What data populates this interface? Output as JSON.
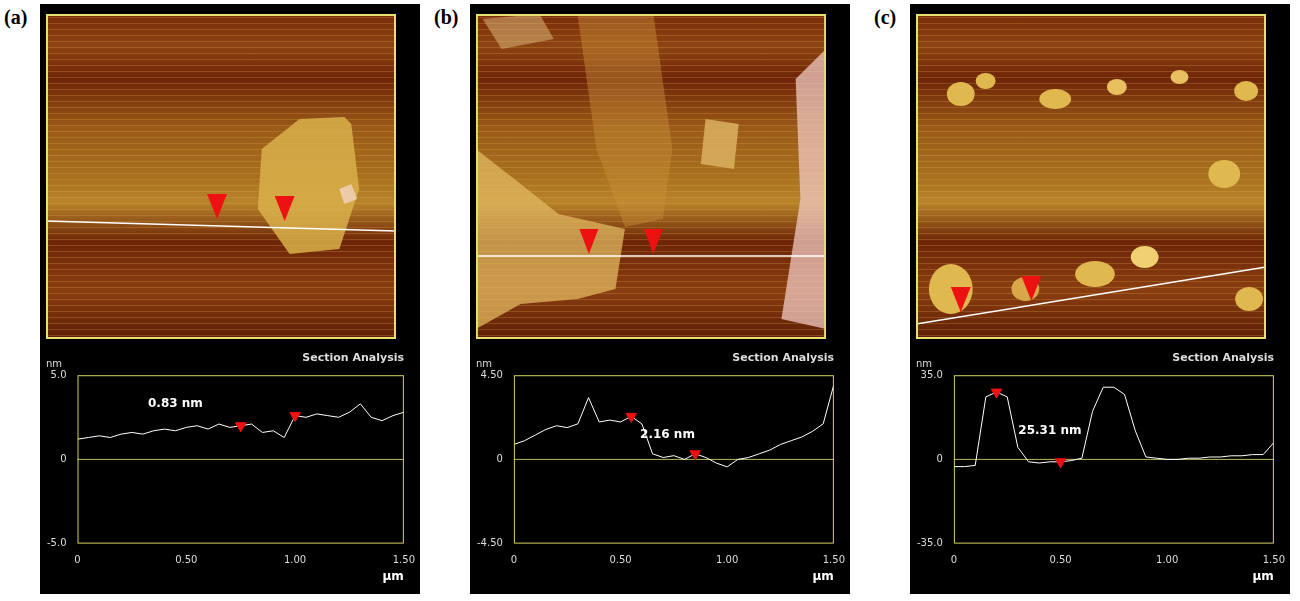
{
  "panel_labels": [
    "(a)",
    "(b)",
    "(c)"
  ],
  "chart_data": [
    {
      "type": "line",
      "title": "Section Analysis",
      "x_label": "µm",
      "y_label": "nm",
      "color": "#ffffff",
      "grid": false,
      "x": [
        0,
        0.05,
        0.1,
        0.15,
        0.2,
        0.25,
        0.3,
        0.35,
        0.4,
        0.45,
        0.5,
        0.55,
        0.6,
        0.65,
        0.7,
        0.75,
        0.8,
        0.85,
        0.9,
        0.95,
        1.0,
        1.05,
        1.1,
        1.15,
        1.2,
        1.25,
        1.3,
        1.35,
        1.4,
        1.45,
        1.5
      ],
      "values": [
        1.2,
        1.3,
        1.4,
        1.3,
        1.5,
        1.6,
        1.5,
        1.7,
        1.8,
        1.7,
        1.9,
        2.0,
        1.8,
        2.1,
        1.9,
        2.0,
        2.1,
        1.6,
        1.7,
        1.3,
        2.6,
        2.5,
        2.7,
        2.6,
        2.5,
        2.8,
        3.3,
        2.5,
        2.3,
        2.6,
        2.8
      ],
      "markers": [
        {
          "x": 0.75,
          "y": 2.0
        },
        {
          "x": 1.0,
          "y": 2.6
        }
      ],
      "annotation": {
        "text": "0.83 nm",
        "x": 0.45,
        "y": 3.3
      },
      "xlim": [
        0,
        1.5
      ],
      "xticks": [
        0,
        {
          "value": 0.5,
          "label": "0.50"
        },
        {
          "value": 1.0,
          "label": "1.00"
        },
        {
          "value": 1.5,
          "label": "1.50"
        }
      ],
      "ylim": [
        -5,
        5
      ],
      "yticks": [
        {
          "value": -5,
          "label": "-5.0"
        },
        0,
        {
          "value": 5,
          "label": "5.0"
        }
      ]
    },
    {
      "type": "line",
      "title": "Section Analysis",
      "x_label": "µm",
      "y_label": "nm",
      "color": "#ffffff",
      "grid": false,
      "x": [
        0,
        0.05,
        0.1,
        0.15,
        0.2,
        0.25,
        0.3,
        0.35,
        0.4,
        0.45,
        0.5,
        0.55,
        0.6,
        0.65,
        0.7,
        0.75,
        0.8,
        0.85,
        0.9,
        0.95,
        1.0,
        1.05,
        1.1,
        1.15,
        1.2,
        1.25,
        1.3,
        1.35,
        1.4,
        1.45,
        1.5
      ],
      "values": [
        0.8,
        1.0,
        1.3,
        1.6,
        1.8,
        1.7,
        1.9,
        3.3,
        2.0,
        2.1,
        2.0,
        2.3,
        1.9,
        0.3,
        0.1,
        0.2,
        0.0,
        0.3,
        0.1,
        -0.2,
        -0.4,
        0.0,
        0.1,
        0.3,
        0.5,
        0.8,
        1.0,
        1.2,
        1.5,
        1.9,
        4.0
      ],
      "markers": [
        {
          "x": 0.55,
          "y": 2.3
        },
        {
          "x": 0.85,
          "y": 0.3
        }
      ],
      "annotation": {
        "text": "2.16 nm",
        "x": 0.72,
        "y": 1.3
      },
      "xlim": [
        0,
        1.5
      ],
      "xticks": [
        0,
        {
          "value": 0.5,
          "label": "0.50"
        },
        {
          "value": 1.0,
          "label": "1.00"
        },
        {
          "value": 1.5,
          "label": "1.50"
        }
      ],
      "ylim": [
        -4.5,
        4.5
      ],
      "yticks": [
        {
          "value": -4.5,
          "label": "-4.50"
        },
        0,
        {
          "value": 4.5,
          "label": "4.50"
        }
      ]
    },
    {
      "type": "line",
      "title": "Section Analysis",
      "x_label": "µm",
      "y_label": "nm",
      "color": "#ffffff",
      "grid": false,
      "x": [
        0,
        0.05,
        0.1,
        0.15,
        0.2,
        0.25,
        0.3,
        0.35,
        0.4,
        0.45,
        0.5,
        0.55,
        0.6,
        0.65,
        0.7,
        0.75,
        0.8,
        0.85,
        0.9,
        0.95,
        1.0,
        1.05,
        1.1,
        1.15,
        1.2,
        1.25,
        1.3,
        1.35,
        1.4,
        1.45,
        1.5
      ],
      "values": [
        -3,
        -3,
        -2.5,
        26,
        28,
        26,
        5,
        -1,
        -1.5,
        -1,
        -1,
        -0.5,
        0.5,
        20,
        30,
        30,
        27,
        12,
        1,
        0.5,
        0,
        0,
        0.5,
        0.5,
        1,
        1,
        1.5,
        1.5,
        2,
        2,
        7
      ],
      "markers": [
        {
          "x": 0.2,
          "y": 28
        },
        {
          "x": 0.5,
          "y": -1
        }
      ],
      "annotation": {
        "text": "25.31 nm",
        "x": 0.45,
        "y": 12
      },
      "xlim": [
        0,
        1.5
      ],
      "xticks": [
        0,
        {
          "value": 0.5,
          "label": "0.50"
        },
        {
          "value": 1.0,
          "label": "1.00"
        },
        {
          "value": 1.5,
          "label": "1.50"
        }
      ],
      "ylim": [
        -35,
        35
      ],
      "yticks": [
        {
          "value": -35,
          "label": "-35.0"
        },
        0,
        {
          "value": 35,
          "label": "35.0"
        }
      ]
    }
  ]
}
